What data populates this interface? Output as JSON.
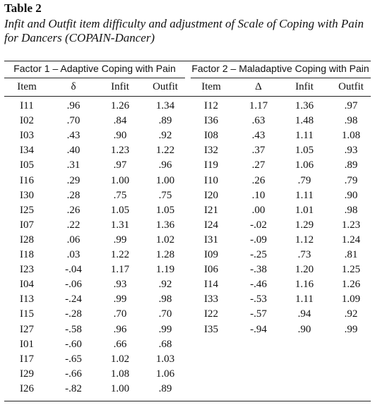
{
  "header": {
    "title": "Table 2",
    "caption": "Infit and Outfit item difficulty and adjustment of Scale of Coping with Pain for Dancers (COPAIN-Dancer)"
  },
  "table": {
    "factors": [
      {
        "title": "Factor 1 – Adaptive Coping with Pain",
        "columns": [
          "Item",
          "δ",
          "Infit",
          "Outfit"
        ],
        "rows": [
          [
            "I11",
            ".96",
            "1.26",
            "1.34"
          ],
          [
            "I02",
            ".70",
            ".84",
            ".89"
          ],
          [
            "I03",
            ".43",
            ".90",
            ".92"
          ],
          [
            "I34",
            ".40",
            "1.23",
            "1.22"
          ],
          [
            "I05",
            ".31",
            ".97",
            ".96"
          ],
          [
            "I16",
            ".29",
            "1.00",
            "1.00"
          ],
          [
            "I30",
            ".28",
            ".75",
            ".75"
          ],
          [
            "I25",
            ".26",
            "1.05",
            "1.05"
          ],
          [
            "I07",
            ".22",
            "1.31",
            "1.36"
          ],
          [
            "I28",
            ".06",
            ".99",
            "1.02"
          ],
          [
            "I18",
            ".03",
            "1.22",
            "1.28"
          ],
          [
            "I23",
            "-.04",
            "1.17",
            "1.19"
          ],
          [
            "I04",
            "-.06",
            ".93",
            ".92"
          ],
          [
            "I13",
            "-.24",
            ".99",
            ".98"
          ],
          [
            "I15",
            "-.28",
            ".70",
            ".70"
          ],
          [
            "I27",
            "-.58",
            ".96",
            ".99"
          ],
          [
            "I01",
            "-.60",
            ".66",
            ".68"
          ],
          [
            "I17",
            "-.65",
            "1.02",
            "1.03"
          ],
          [
            "I29",
            "-.66",
            "1.08",
            "1.06"
          ],
          [
            "I26",
            "-.82",
            "1.00",
            ".89"
          ]
        ]
      },
      {
        "title": "Factor 2 – Maladaptive Coping with Pain",
        "columns": [
          "Item",
          "Δ",
          "Infit",
          "Outfit"
        ],
        "rows": [
          [
            "I12",
            "1.17",
            "1.36",
            ".97"
          ],
          [
            "I36",
            ".63",
            "1.48",
            ".98"
          ],
          [
            "I08",
            ".43",
            "1.11",
            "1.08"
          ],
          [
            "I32",
            ".37",
            "1.05",
            ".93"
          ],
          [
            "I19",
            ".27",
            "1.06",
            ".89"
          ],
          [
            "I10",
            ".26",
            ".79",
            ".79"
          ],
          [
            "I20",
            ".10",
            "1.11",
            ".90"
          ],
          [
            "I21",
            ".00",
            "1.01",
            ".98"
          ],
          [
            "I24",
            "-.02",
            "1.29",
            "1.23"
          ],
          [
            "I31",
            "-.09",
            "1.12",
            "1.24"
          ],
          [
            "I09",
            "-.25",
            ".73",
            ".81"
          ],
          [
            "I06",
            "-.38",
            "1.20",
            "1.25"
          ],
          [
            "I14",
            "-.46",
            "1.16",
            "1.26"
          ],
          [
            "I33",
            "-.53",
            "1.11",
            "1.09"
          ],
          [
            "I22",
            "-.57",
            ".94",
            ".92"
          ],
          [
            "I35",
            "-.94",
            ".90",
            ".99"
          ]
        ]
      }
    ]
  }
}
